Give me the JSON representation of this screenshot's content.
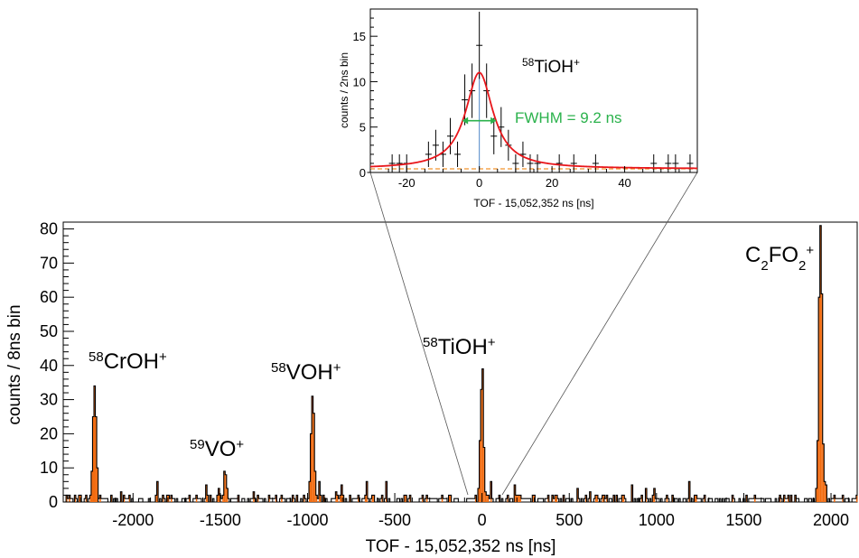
{
  "chart_data": [
    {
      "type": "histogram",
      "xlabel": "TOF - 15,052,352 ns [ns]",
      "ylabel": "counts / 8ns bin",
      "xlim": [
        -2400,
        2150
      ],
      "ylim": [
        0,
        82
      ],
      "xticks": [
        -2000,
        -1500,
        -1000,
        -500,
        0,
        500,
        1000,
        1500,
        2000
      ],
      "yticks": [
        0,
        10,
        20,
        30,
        40,
        50,
        60,
        70,
        80
      ],
      "grid": false,
      "colors": {
        "outline": "#000000",
        "fill": "#f26b0f"
      },
      "peaks": [
        {
          "name": "58CrOH+",
          "x": -2220,
          "height": 34,
          "label_parts": [
            [
              "58",
              "sup"
            ],
            [
              "CrOH",
              ""
            ],
            [
              "+",
              "sup"
            ]
          ]
        },
        {
          "name": "59VO+",
          "x": -1470,
          "height": 8,
          "label_parts": [
            [
              "59",
              "sup"
            ],
            [
              "VO",
              ""
            ],
            [
              "+",
              "sup"
            ]
          ]
        },
        {
          "name": "58VOH+",
          "x": -970,
          "height": 31,
          "label_parts": [
            [
              "58",
              "sup"
            ],
            [
              "VOH",
              ""
            ],
            [
              "+",
              "sup"
            ]
          ]
        },
        {
          "name": "58TiOH+",
          "x": 0,
          "height": 39,
          "label_parts": [
            [
              "58",
              "sup"
            ],
            [
              "TiOH",
              ""
            ],
            [
              "+",
              "sup"
            ]
          ]
        },
        {
          "name": "C2FO2+",
          "x": 1940,
          "height": 81,
          "label_parts": [
            [
              "C",
              ""
            ],
            [
              "2",
              "sub"
            ],
            [
              "FO",
              ""
            ],
            [
              "2",
              "sub"
            ],
            [
              "+",
              "sup"
            ]
          ]
        }
      ]
    },
    {
      "type": "scatter-with-fit",
      "xlabel": "TOF - 15,052,352 ns [ns]",
      "ylabel": "counts / 2ns bin",
      "xlim": [
        -30,
        60
      ],
      "ylim": [
        0,
        18
      ],
      "xticks": [
        -20,
        0,
        20,
        40
      ],
      "yticks": [
        0,
        5,
        10,
        15
      ],
      "annotation": "FWHM = 9.2 ns",
      "species_label_parts": [
        [
          "58",
          "sup"
        ],
        [
          "TiOH",
          ""
        ],
        [
          "+",
          "sup"
        ]
      ],
      "colors": {
        "fit": "#e8161b",
        "background": "#f2932e",
        "fwhm": "#2bb24c",
        "center": "#4f86c6",
        "points": "#000000"
      },
      "fit": {
        "type": "lorentzian",
        "center": 0,
        "amplitude": 10.6,
        "fwhm": 9.2,
        "offset": 0.4
      },
      "points": [
        {
          "x": -30,
          "y": 0,
          "err": 0
        },
        {
          "x": -28,
          "y": 0,
          "err": 0
        },
        {
          "x": -26,
          "y": 0,
          "err": 0
        },
        {
          "x": -24,
          "y": 1,
          "err": 1
        },
        {
          "x": -22,
          "y": 1,
          "err": 1
        },
        {
          "x": -20,
          "y": 1,
          "err": 1
        },
        {
          "x": -18,
          "y": 0,
          "err": 0
        },
        {
          "x": -16,
          "y": 0,
          "err": 0
        },
        {
          "x": -14,
          "y": 2,
          "err": 1.4
        },
        {
          "x": -12,
          "y": 3,
          "err": 1.7
        },
        {
          "x": -10,
          "y": 2,
          "err": 1.4
        },
        {
          "x": -8,
          "y": 4,
          "err": 2
        },
        {
          "x": -6,
          "y": 2,
          "err": 1.4
        },
        {
          "x": -4,
          "y": 8,
          "err": 2.8
        },
        {
          "x": -2,
          "y": 9,
          "err": 3
        },
        {
          "x": 0,
          "y": 14,
          "err": 3.7
        },
        {
          "x": 2,
          "y": 9,
          "err": 3
        },
        {
          "x": 4,
          "y": 4,
          "err": 2
        },
        {
          "x": 6,
          "y": 5,
          "err": 2.2
        },
        {
          "x": 8,
          "y": 3,
          "err": 1.7
        },
        {
          "x": 10,
          "y": 1,
          "err": 1
        },
        {
          "x": 12,
          "y": 2,
          "err": 1.4
        },
        {
          "x": 14,
          "y": 1,
          "err": 1
        },
        {
          "x": 16,
          "y": 1,
          "err": 1
        },
        {
          "x": 18,
          "y": 0,
          "err": 0
        },
        {
          "x": 20,
          "y": 0,
          "err": 0
        },
        {
          "x": 22,
          "y": 1,
          "err": 1
        },
        {
          "x": 24,
          "y": 0,
          "err": 0
        },
        {
          "x": 26,
          "y": 1,
          "err": 1
        },
        {
          "x": 28,
          "y": 0,
          "err": 0
        },
        {
          "x": 30,
          "y": 0,
          "err": 0
        },
        {
          "x": 32,
          "y": 1,
          "err": 1
        },
        {
          "x": 34,
          "y": 0,
          "err": 0
        },
        {
          "x": 36,
          "y": 0,
          "err": 0
        },
        {
          "x": 38,
          "y": 0,
          "err": 0
        },
        {
          "x": 40,
          "y": 0,
          "err": 0
        },
        {
          "x": 42,
          "y": 0,
          "err": 0
        },
        {
          "x": 44,
          "y": 0,
          "err": 0
        },
        {
          "x": 46,
          "y": 0,
          "err": 0
        },
        {
          "x": 48,
          "y": 1,
          "err": 1
        },
        {
          "x": 50,
          "y": 0,
          "err": 0
        },
        {
          "x": 52,
          "y": 1,
          "err": 1
        },
        {
          "x": 54,
          "y": 1,
          "err": 1
        },
        {
          "x": 56,
          "y": 0,
          "err": 0
        },
        {
          "x": 58,
          "y": 1,
          "err": 1
        }
      ]
    }
  ]
}
